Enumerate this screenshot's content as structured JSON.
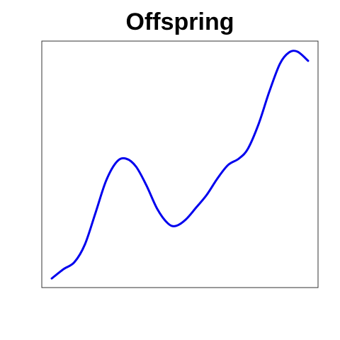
{
  "chart_data": {
    "type": "line",
    "title": "Offspring",
    "x": [
      0.036,
      0.079,
      0.118,
      0.156,
      0.195,
      0.233,
      0.272,
      0.305,
      0.341,
      0.379,
      0.418,
      0.456,
      0.485,
      0.521,
      0.559,
      0.597,
      0.636,
      0.674,
      0.713,
      0.746,
      0.785,
      0.823,
      0.862,
      0.895,
      0.926,
      0.964
    ],
    "series": [
      {
        "color": "#0000ee",
        "values": [
          0.037,
          0.075,
          0.103,
          0.175,
          0.305,
          0.434,
          0.511,
          0.523,
          0.491,
          0.414,
          0.319,
          0.261,
          0.25,
          0.276,
          0.325,
          0.376,
          0.443,
          0.497,
          0.523,
          0.563,
          0.664,
          0.793,
          0.908,
          0.954,
          0.957,
          0.92
        ]
      }
    ],
    "xlim": [
      0,
      1
    ],
    "ylim": [
      0,
      1
    ]
  }
}
